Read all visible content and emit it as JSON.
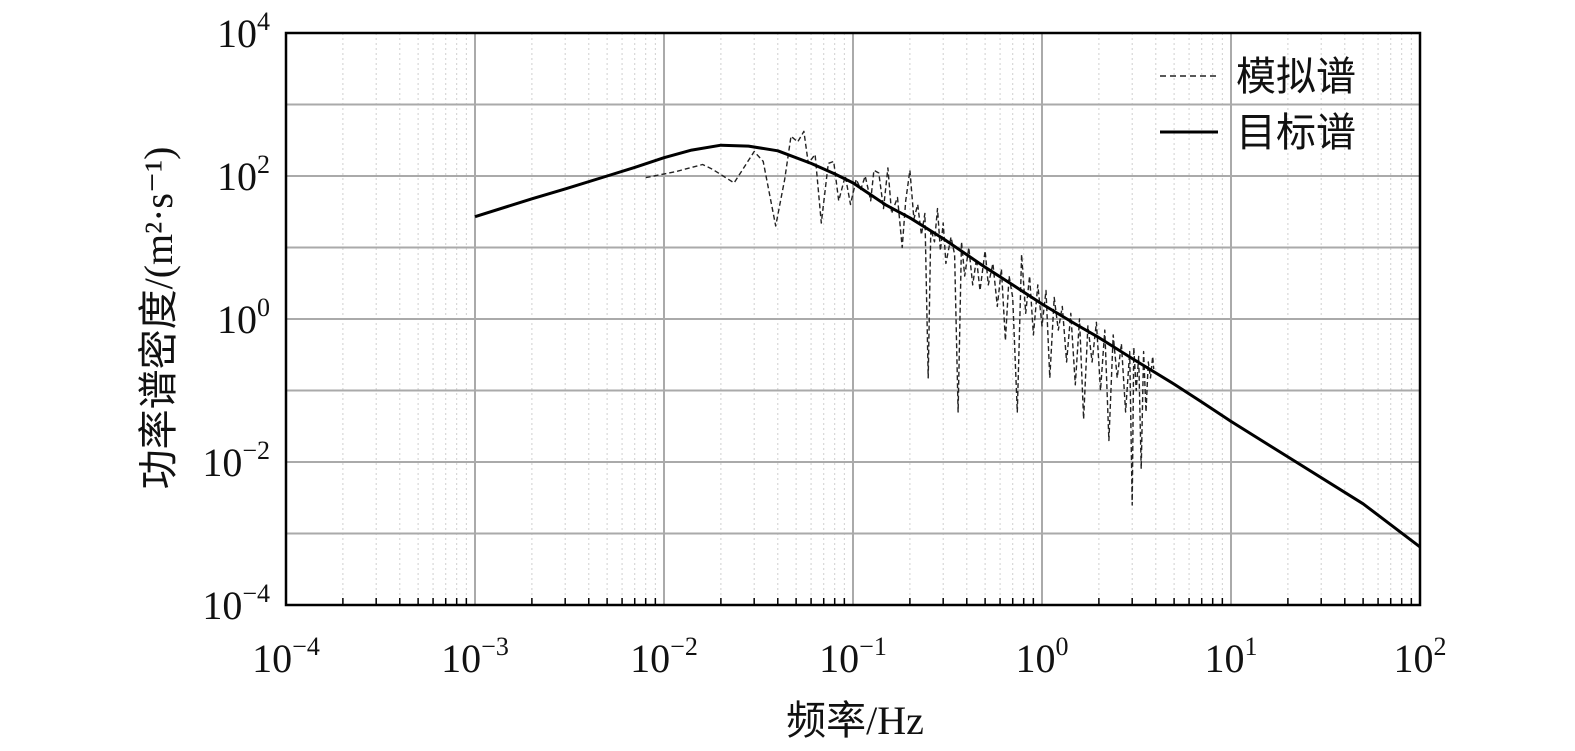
{
  "chart_data": {
    "type": "line",
    "title": "",
    "xlabel": "频率/Hz",
    "ylabel": "功率谱密度/(m²·s⁻¹)",
    "x_scale": "log",
    "y_scale": "log",
    "xlim": [
      0.0001,
      100
    ],
    "ylim": [
      0.0001,
      10000
    ],
    "grid": true,
    "legend_position": "top-right",
    "x_ticks": [
      {
        "base": "10",
        "exp": "−4",
        "value": 0.0001
      },
      {
        "base": "10",
        "exp": "−3",
        "value": 0.001
      },
      {
        "base": "10",
        "exp": "−2",
        "value": 0.01
      },
      {
        "base": "10",
        "exp": "−1",
        "value": 0.1
      },
      {
        "base": "10",
        "exp": "0",
        "value": 1
      },
      {
        "base": "10",
        "exp": "1",
        "value": 10
      },
      {
        "base": "10",
        "exp": "2",
        "value": 100
      }
    ],
    "y_ticks": [
      {
        "base": "10",
        "exp": "−4",
        "value": 0.0001
      },
      {
        "base": "10",
        "exp": "−2",
        "value": 0.01
      },
      {
        "base": "10",
        "exp": "0",
        "value": 1
      },
      {
        "base": "10",
        "exp": "2",
        "value": 100
      },
      {
        "base": "10",
        "exp": "4",
        "value": 10000
      }
    ],
    "series": [
      {
        "name": "模拟谱",
        "style": "dashed",
        "color": "#222222",
        "x": [
          0.008,
          0.0115,
          0.016,
          0.018,
          0.0235,
          0.03,
          0.0335,
          0.039,
          0.0435,
          0.047,
          0.051,
          0.055,
          0.058,
          0.063,
          0.068,
          0.074,
          0.079,
          0.084,
          0.091,
          0.097,
          0.104,
          0.11,
          0.116,
          0.124,
          0.129,
          0.137,
          0.145,
          0.153,
          0.16,
          0.172,
          0.182,
          0.19,
          0.2,
          0.21,
          0.22,
          0.23,
          0.24,
          0.25,
          0.258,
          0.27,
          0.28,
          0.29,
          0.3,
          0.31,
          0.33,
          0.345,
          0.36,
          0.375,
          0.39,
          0.41,
          0.43,
          0.45,
          0.47,
          0.5,
          0.52,
          0.55,
          0.58,
          0.61,
          0.64,
          0.67,
          0.7,
          0.74,
          0.78,
          0.82,
          0.86,
          0.9,
          0.95,
          1.0,
          1.05,
          1.1,
          1.16,
          1.22,
          1.28,
          1.35,
          1.42,
          1.5,
          1.58,
          1.66,
          1.75,
          1.84,
          1.94,
          2.04,
          2.15,
          2.26,
          2.38,
          2.5,
          2.63,
          2.77,
          2.91,
          3.0,
          3.06,
          3.15,
          3.25,
          3.35,
          3.45,
          3.55,
          3.65,
          3.75,
          3.85,
          3.9
        ],
        "y": [
          95,
          115,
          145,
          125,
          80,
          220,
          160,
          20,
          90,
          360,
          300,
          420,
          150,
          200,
          22,
          150,
          160,
          45,
          100,
          40,
          90,
          65,
          100,
          45,
          120,
          110,
          35,
          130,
          30,
          50,
          10,
          45,
          120,
          25,
          40,
          15,
          30,
          0.15,
          18,
          12,
          35,
          9,
          22,
          6,
          14,
          8,
          0.05,
          12,
          4,
          10,
          3,
          7,
          2.5,
          9,
          3,
          6,
          1.5,
          5,
          0.5,
          4,
          2,
          0.05,
          8,
          1.2,
          4,
          0.6,
          3,
          0.8,
          2.5,
          0.15,
          2,
          0.7,
          1.5,
          0.25,
          1.2,
          0.12,
          1,
          0.04,
          0.8,
          0.25,
          0.9,
          0.1,
          0.7,
          0.02,
          0.6,
          0.15,
          0.45,
          0.05,
          0.35,
          0.0025,
          0.4,
          0.1,
          0.3,
          0.008,
          0.35,
          0.05,
          0.25,
          0.15,
          0.3,
          0.2
        ]
      },
      {
        "name": "目标谱",
        "style": "solid",
        "color": "#000000",
        "x": [
          0.001,
          0.002,
          0.003,
          0.005,
          0.007,
          0.01,
          0.014,
          0.02,
          0.028,
          0.04,
          0.06,
          0.08,
          0.1,
          0.15,
          0.2,
          0.3,
          0.5,
          0.7,
          1,
          1.5,
          2,
          3,
          5,
          7,
          10,
          20,
          50,
          100
        ],
        "y": [
          27,
          48,
          66,
          100,
          132,
          180,
          230,
          270,
          262,
          225,
          150,
          107,
          80,
          39,
          26,
          13.3,
          5.3,
          3.0,
          1.62,
          0.85,
          0.55,
          0.28,
          0.123,
          0.069,
          0.037,
          0.0118,
          0.0026,
          0.00065
        ]
      }
    ]
  }
}
